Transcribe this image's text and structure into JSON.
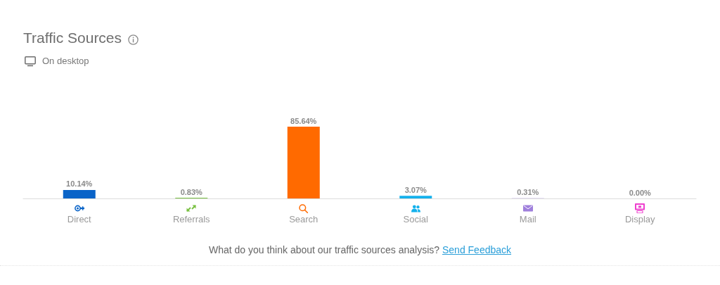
{
  "chart_data": {
    "type": "bar",
    "title": "Traffic Sources",
    "subtitle": "On desktop",
    "categories": [
      "Direct",
      "Referrals",
      "Search",
      "Social",
      "Mail",
      "Display"
    ],
    "values": [
      10.14,
      0.83,
      85.64,
      3.07,
      0.31,
      0.0
    ],
    "colors": [
      "#0a64c8",
      "#7ac143",
      "#ff6a00",
      "#14b1ec",
      "#9f7fdc",
      "#ee3fce"
    ],
    "value_labels": [
      "10.14%",
      "0.83%",
      "85.64%",
      "3.07%",
      "0.31%",
      "0.00%"
    ],
    "annotations": [
      "What do you think about our traffic sources analysis?",
      "Send Feedback"
    ],
    "tick_labels": "x",
    "grid": false
  }
}
